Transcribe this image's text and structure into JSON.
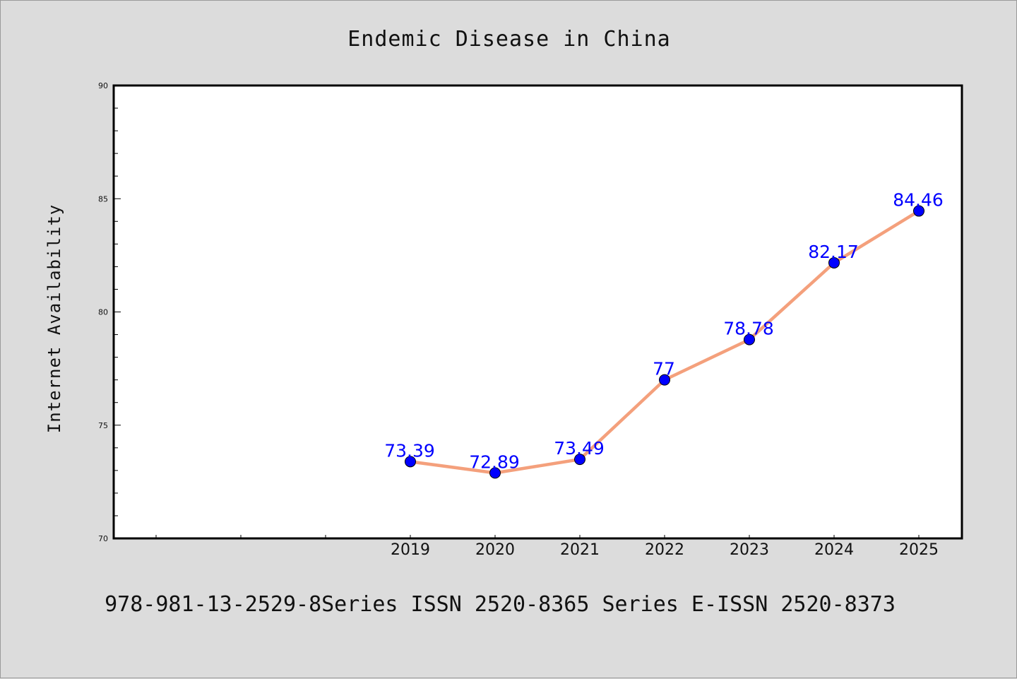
{
  "chart_data": {
    "type": "line",
    "title": "Endemic Disease in China",
    "xlabel": "",
    "ylabel": "Internet Availability",
    "x": [
      "2019",
      "2020",
      "2021",
      "2022",
      "2023",
      "2024",
      "2025"
    ],
    "series": [
      {
        "values": [
          73.39,
          72.89,
          73.49,
          77,
          78.78,
          82.17,
          84.46
        ],
        "labels": [
          "73.39",
          "72.89",
          "73.49",
          "77",
          "78.78",
          "82.17",
          "84.46"
        ],
        "line_color": "#f4a07c",
        "marker_color": "#0000ff"
      }
    ],
    "ylim": [
      70,
      90
    ],
    "yticks": [
      "70",
      "75",
      "80",
      "85",
      "90"
    ],
    "grid": false,
    "legend": "none"
  },
  "footer": {
    "text": "978-981-13-2529-8Series ISSN 2520-8365 Series E-ISSN 2520-8373"
  },
  "colors": {
    "background": "#dcdcdc",
    "plot_background": "#ffffff",
    "axis": "#000000"
  }
}
